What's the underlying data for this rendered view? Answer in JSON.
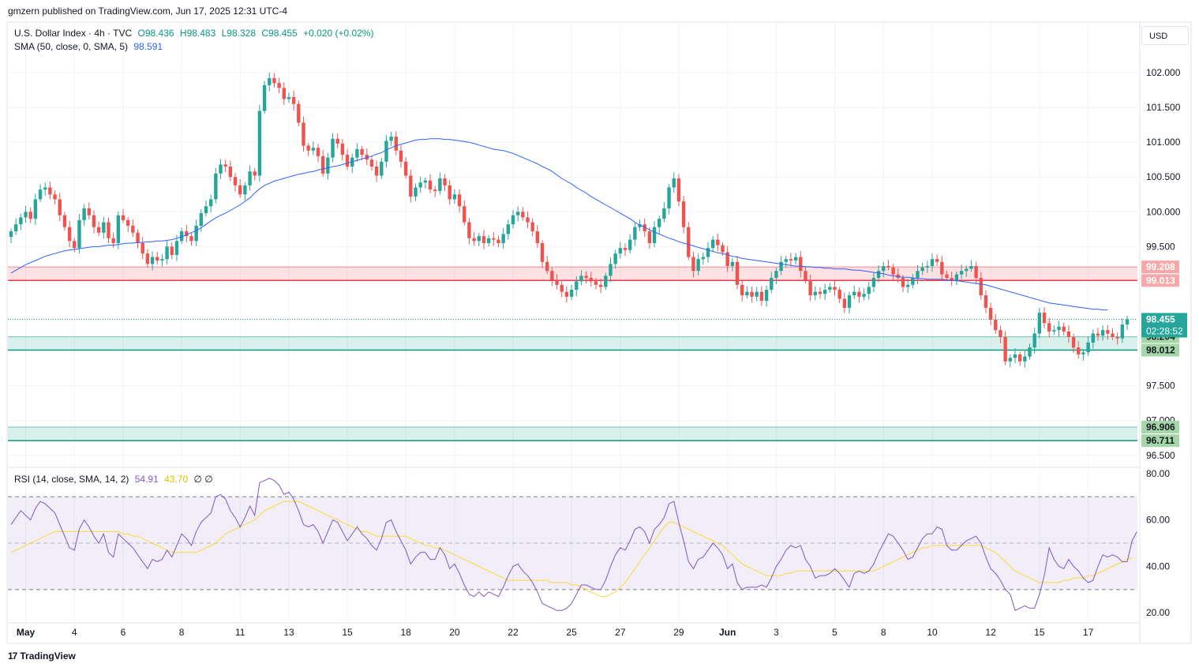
{
  "header": {
    "published_caption": "gmzern published on TradingView.com, Jun 17, 2025 12:31 UTC-4",
    "currency": "USD",
    "brand": "TradingView",
    "brand_icon": "tradingview-logo-icon"
  },
  "legend": {
    "symbol": "U.S. Dollar Index · 4h · TVC",
    "open": "O98.436",
    "high": "H98.483",
    "low": "L98.328",
    "close": "C98.455",
    "change": "+0.020 (+0.02%)",
    "sma_label": "SMA (50, close, 0, SMA, 5)",
    "sma_value": "98.591",
    "rsi_label": "RSI (14, close, SMA, 14, 2)",
    "rsi_value": "54.91",
    "rsi_ma_value": "43.70",
    "rsi_extra": "∅ ∅"
  },
  "colors": {
    "up": "#26a69a",
    "down": "#ef5350",
    "sma": "#2962ff",
    "rsi": "#7e57c2",
    "rsi_ma": "#fdd835",
    "resistance_zone": "#f23645",
    "support_zone": "#089981"
  },
  "chart_data": [
    {
      "type": "candlestick",
      "title": "U.S. Dollar Index · 4h · TVC",
      "price_ticks": [
        "102.000",
        "101.500",
        "101.000",
        "100.500",
        "100.000",
        "99.500",
        "97.500",
        "97.000",
        "96.500"
      ],
      "ylim": [
        96.35,
        102.25
      ],
      "x_ticks": [
        "May",
        "4",
        "6",
        "8",
        "11",
        "13",
        "15",
        "18",
        "20",
        "22",
        "25",
        "27",
        "29",
        "Jun",
        "3",
        "5",
        "8",
        "10",
        "12",
        "15",
        "17"
      ],
      "x_tick_index": [
        3,
        13,
        23,
        35,
        47,
        57,
        69,
        81,
        91,
        103,
        115,
        125,
        137,
        147,
        157,
        169,
        179,
        189,
        201,
        211,
        221
      ],
      "close_series": [
        99.72,
        99.82,
        99.92,
        100.0,
        99.9,
        100.18,
        100.32,
        100.35,
        100.25,
        100.18,
        99.95,
        99.78,
        99.58,
        99.48,
        99.88,
        100.05,
        99.95,
        99.78,
        99.7,
        99.85,
        99.62,
        99.55,
        99.95,
        99.88,
        99.8,
        99.7,
        99.55,
        99.4,
        99.25,
        99.35,
        99.3,
        99.32,
        99.5,
        99.38,
        99.58,
        99.72,
        99.65,
        99.58,
        99.8,
        99.98,
        100.08,
        100.18,
        100.55,
        100.68,
        100.65,
        100.5,
        100.38,
        100.25,
        100.38,
        100.58,
        100.52,
        101.45,
        101.82,
        101.92,
        101.85,
        101.78,
        101.62,
        101.65,
        101.55,
        101.28,
        100.95,
        100.88,
        100.92,
        100.8,
        100.55,
        100.78,
        101.05,
        100.98,
        100.82,
        100.65,
        100.78,
        100.9,
        100.82,
        100.75,
        100.65,
        100.52,
        100.72,
        101.02,
        101.08,
        100.88,
        100.72,
        100.52,
        100.22,
        100.35,
        100.42,
        100.45,
        100.32,
        100.3,
        100.48,
        100.38,
        100.18,
        100.25,
        100.08,
        99.85,
        99.62,
        99.58,
        99.65,
        99.55,
        99.62,
        99.6,
        99.55,
        99.68,
        99.82,
        99.95,
        100.0,
        99.92,
        99.85,
        99.72,
        99.55,
        99.28,
        99.15,
        99.02,
        98.95,
        98.85,
        98.78,
        98.88,
        99.0,
        99.08,
        99.05,
        99.0,
        98.95,
        98.92,
        99.08,
        99.25,
        99.4,
        99.48,
        99.45,
        99.6,
        99.78,
        99.82,
        99.72,
        99.55,
        99.78,
        99.9,
        100.05,
        100.35,
        100.48,
        100.15,
        99.78,
        99.35,
        99.15,
        99.32,
        99.35,
        99.48,
        99.6,
        99.52,
        99.42,
        99.22,
        99.28,
        98.95,
        98.8,
        98.85,
        98.78,
        98.85,
        98.72,
        98.88,
        99.05,
        99.15,
        99.28,
        99.32,
        99.3,
        99.35,
        99.15,
        99.02,
        98.8,
        98.85,
        98.82,
        98.88,
        98.92,
        98.88,
        98.75,
        98.62,
        98.8,
        98.85,
        98.78,
        98.82,
        98.92,
        99.05,
        99.15,
        99.22,
        99.2,
        99.1,
        99.05,
        98.92,
        98.95,
        99.05,
        99.15,
        99.2,
        99.22,
        99.32,
        99.28,
        99.1,
        99.05,
        99.02,
        99.1,
        99.15,
        99.18,
        99.22,
        99.05,
        98.8,
        98.62,
        98.45,
        98.3,
        98.2,
        97.85,
        97.9,
        97.95,
        97.85,
        97.92,
        98.05,
        98.25,
        98.55,
        98.4,
        98.28,
        98.3,
        98.35,
        98.28,
        98.2,
        98.05,
        97.95,
        97.98,
        98.12,
        98.25,
        98.22,
        98.3,
        98.25,
        98.2,
        98.18,
        98.38,
        98.455
      ],
      "sma_series": [
        99.12,
        99.16,
        99.2,
        99.24,
        99.27,
        99.3,
        99.33,
        99.36,
        99.38,
        99.4,
        99.42,
        99.44,
        99.45,
        99.46,
        99.47,
        99.48,
        99.49,
        99.5,
        99.5,
        99.51,
        99.52,
        99.52,
        99.53,
        99.54,
        99.55,
        99.55,
        99.56,
        99.56,
        99.57,
        99.57,
        99.58,
        99.58,
        99.59,
        99.6,
        99.62,
        99.64,
        99.67,
        99.7,
        99.73,
        99.77,
        99.82,
        99.87,
        99.91,
        99.95,
        99.98,
        100.02,
        100.06,
        100.1,
        100.15,
        100.2,
        100.27,
        100.33,
        100.38,
        100.41,
        100.44,
        100.46,
        100.48,
        100.5,
        100.52,
        100.54,
        100.55,
        100.57,
        100.58,
        100.6,
        100.62,
        100.63,
        100.65,
        100.66,
        100.68,
        100.7,
        100.72,
        100.74,
        100.76,
        100.78,
        100.8,
        100.83,
        100.85,
        100.89,
        100.92,
        100.95,
        100.97,
        100.99,
        101.01,
        101.03,
        101.04,
        101.04,
        101.05,
        101.05,
        101.05,
        101.04,
        101.04,
        101.03,
        101.02,
        101.01,
        101.0,
        100.98,
        100.96,
        100.94,
        100.92,
        100.9,
        100.89,
        100.88,
        100.86,
        100.84,
        100.81,
        100.78,
        100.75,
        100.72,
        100.69,
        100.65,
        100.62,
        100.58,
        100.53,
        100.48,
        100.44,
        100.4,
        100.35,
        100.31,
        100.27,
        100.22,
        100.18,
        100.14,
        100.1,
        100.06,
        100.02,
        99.98,
        99.94,
        99.9,
        99.85,
        99.81,
        99.78,
        99.74,
        99.71,
        99.68,
        99.65,
        99.62,
        99.6,
        99.57,
        99.55,
        99.53,
        99.51,
        99.49,
        99.47,
        99.45,
        99.43,
        99.41,
        99.4,
        99.38,
        99.36,
        99.35,
        99.33,
        99.32,
        99.31,
        99.3,
        99.29,
        99.28,
        99.27,
        99.26,
        99.25,
        99.24,
        99.23,
        99.22,
        99.22,
        99.21,
        99.21,
        99.2,
        99.2,
        99.19,
        99.19,
        99.18,
        99.18,
        99.18,
        99.17,
        99.16,
        99.16,
        99.15,
        99.14,
        99.13,
        99.12,
        99.11,
        99.09,
        99.08,
        99.07,
        99.06,
        99.06,
        99.05,
        99.04,
        99.04,
        99.03,
        99.03,
        99.03,
        99.03,
        99.02,
        99.02,
        99.01,
        99.0,
        98.99,
        98.98,
        98.97,
        98.96,
        98.95,
        98.93,
        98.91,
        98.89,
        98.87,
        98.85,
        98.83,
        98.81,
        98.79,
        98.77,
        98.75,
        98.73,
        98.71,
        98.69,
        98.68,
        98.67,
        98.66,
        98.65,
        98.64,
        98.63,
        98.62,
        98.61,
        98.6,
        98.6,
        98.59,
        98.59
      ],
      "zones": [
        {
          "label": "resistance",
          "low": 99.013,
          "high": 99.208,
          "low_label": "99.013",
          "high_label": "99.208"
        },
        {
          "label": "support",
          "low": 98.012,
          "high": 98.204,
          "low_label": "98.012",
          "high_label": "98.204"
        },
        {
          "label": "support-2",
          "low": 96.711,
          "high": 96.906,
          "low_label": "96.711",
          "high_label": "96.906"
        }
      ],
      "last_price": {
        "value": 98.455,
        "label": "98.455",
        "countdown": "02:28:52"
      }
    },
    {
      "type": "line",
      "title": "RSI (14, close, SMA, 14, 2)",
      "ylim": [
        16,
        82
      ],
      "y_ticks": [
        "80.00",
        "60.00",
        "40.00",
        "20.00"
      ],
      "upper_band": 70,
      "middle_band": 50,
      "lower_band": 30,
      "rsi_series": [
        58,
        61,
        64,
        62,
        60,
        65,
        68,
        67,
        65,
        63,
        58,
        53,
        48,
        47,
        56,
        60,
        57,
        53,
        50,
        54,
        46,
        44,
        54,
        52,
        50,
        48,
        45,
        42,
        39,
        43,
        42,
        43,
        47,
        44,
        49,
        54,
        52,
        49,
        55,
        59,
        61,
        63,
        70,
        71,
        69,
        64,
        61,
        57,
        61,
        66,
        62,
        76,
        77,
        78,
        77,
        75,
        71,
        72,
        69,
        64,
        58,
        57,
        58,
        55,
        50,
        55,
        60,
        59,
        55,
        51,
        54,
        57,
        54,
        52,
        49,
        47,
        52,
        59,
        60,
        55,
        51,
        47,
        41,
        44,
        46,
        46,
        43,
        43,
        48,
        45,
        39,
        41,
        37,
        32,
        28,
        27,
        29,
        27,
        29,
        28,
        27,
        31,
        36,
        40,
        41,
        38,
        36,
        33,
        29,
        24,
        23,
        22,
        21,
        21,
        22,
        24,
        28,
        32,
        32,
        31,
        30,
        30,
        34,
        40,
        45,
        48,
        47,
        51,
        56,
        57,
        55,
        50,
        56,
        58,
        61,
        67,
        68,
        59,
        51,
        42,
        39,
        43,
        44,
        47,
        50,
        48,
        45,
        39,
        41,
        33,
        30,
        31,
        31,
        31,
        32,
        31,
        35,
        40,
        43,
        47,
        49,
        48,
        49,
        43,
        40,
        35,
        36,
        36,
        37,
        39,
        37,
        34,
        31,
        37,
        38,
        37,
        38,
        41,
        46,
        50,
        54,
        53,
        50,
        47,
        43,
        44,
        48,
        52,
        54,
        54,
        57,
        56,
        49,
        47,
        47,
        49,
        51,
        52,
        53,
        50,
        44,
        39,
        37,
        34,
        30,
        28,
        21,
        22,
        23,
        22,
        22,
        28,
        36,
        48,
        43,
        40,
        39,
        43,
        40,
        38,
        35,
        33,
        34,
        40,
        45,
        44,
        45,
        44,
        42,
        42,
        51,
        54.91
      ],
      "rsi_ma_series": [
        46,
        47,
        48,
        49,
        50,
        51,
        52,
        53,
        54,
        55,
        55,
        55,
        55,
        55,
        55,
        55,
        55,
        55,
        55,
        55,
        55,
        55,
        55,
        54,
        54,
        53,
        53,
        52,
        51,
        50,
        49,
        48,
        47,
        46,
        46,
        46,
        46,
        46,
        46,
        47,
        48,
        49,
        50,
        52,
        54,
        55,
        56,
        57,
        58,
        59,
        60,
        62,
        64,
        65,
        66,
        67,
        68,
        68,
        68,
        68,
        67,
        66,
        65,
        64,
        63,
        62,
        61,
        60,
        59,
        58,
        57,
        56,
        55,
        55,
        54,
        53,
        53,
        53,
        53,
        53,
        53,
        53,
        52,
        51,
        50,
        49,
        49,
        48,
        48,
        47,
        46,
        45,
        44,
        43,
        42,
        41,
        40,
        39,
        38,
        37,
        36,
        35,
        34,
        34,
        34,
        34,
        34,
        34,
        34,
        34,
        34,
        33,
        33,
        33,
        33,
        32,
        32,
        31,
        30,
        29,
        28,
        27,
        27,
        28,
        29,
        31,
        33,
        36,
        39,
        42,
        45,
        48,
        51,
        54,
        57,
        59,
        59,
        58,
        57,
        56,
        55,
        54,
        53,
        52,
        51,
        50,
        49,
        47,
        45,
        43,
        41,
        40,
        39,
        38,
        37,
        36,
        36,
        36,
        36,
        37,
        37,
        38,
        38,
        38,
        38,
        38,
        38,
        38,
        38,
        38,
        38,
        38,
        38,
        38,
        38,
        38,
        38,
        38,
        39,
        40,
        41,
        42,
        43,
        44,
        45,
        46,
        47,
        48,
        48,
        49,
        49,
        49,
        49,
        49,
        49,
        49,
        49,
        49,
        49,
        49,
        48,
        47,
        46,
        44,
        42,
        40,
        38,
        37,
        36,
        35,
        34,
        33,
        33,
        33,
        33,
        33,
        34,
        34,
        35,
        35,
        35,
        36,
        36,
        37,
        38,
        39,
        40,
        41,
        42,
        43,
        43.7
      ]
    }
  ]
}
